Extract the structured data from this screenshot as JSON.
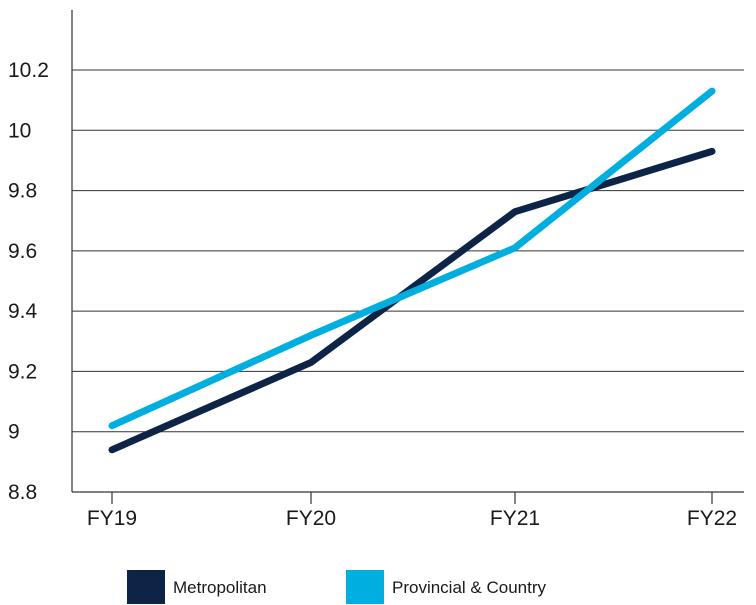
{
  "chart_data": {
    "type": "line",
    "categories": [
      "FY19",
      "FY20",
      "FY21",
      "FY22"
    ],
    "series": [
      {
        "name": "Metropolitan",
        "values": [
          8.94,
          9.23,
          9.73,
          9.93
        ],
        "color": "#0e2446"
      },
      {
        "name": "Provincial & Country",
        "values": [
          9.02,
          9.32,
          9.61,
          10.13
        ],
        "color": "#00aee0"
      }
    ],
    "title": "",
    "xlabel": "",
    "ylabel": "",
    "ylim": [
      8.8,
      10.2
    ],
    "yticks": [
      "8.8",
      "9",
      "9.2",
      "9.4",
      "9.6",
      "9.8",
      "10",
      "10.2"
    ],
    "grid": true,
    "legend": "bottom"
  }
}
